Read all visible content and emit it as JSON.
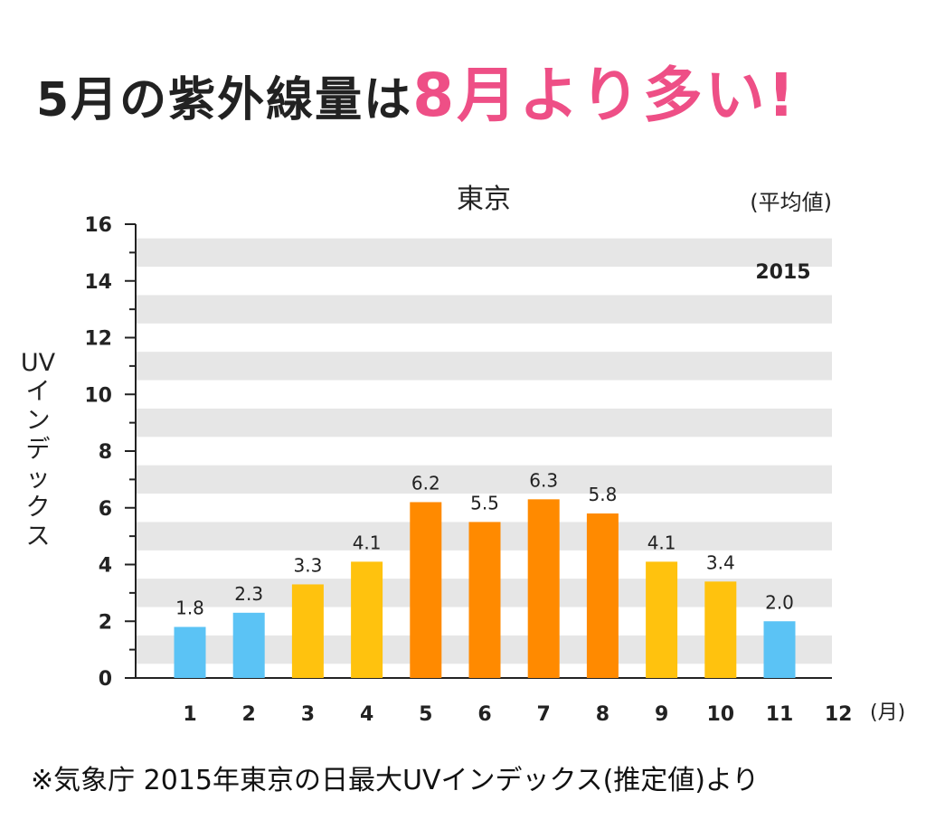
{
  "headline": {
    "part1": "5月の紫外線量は",
    "part2": "8月より多い!"
  },
  "chart_data": {
    "type": "bar",
    "title": "東京",
    "subtitle": "(平均値)",
    "legend_year": "2015",
    "ylabel_lines": [
      "UV",
      "イ",
      "ン",
      "デ",
      "ッ",
      "ク",
      "ス"
    ],
    "xunit": "(月)",
    "categories": [
      "1",
      "2",
      "3",
      "4",
      "5",
      "6",
      "7",
      "8",
      "9",
      "10",
      "11",
      "12"
    ],
    "values": [
      1.8,
      2.3,
      3.3,
      4.1,
      6.2,
      5.5,
      6.3,
      5.8,
      4.1,
      3.4,
      2.0,
      null
    ],
    "value_labels": [
      "1.8",
      "2.3",
      "3.3",
      "4.1",
      "6.2",
      "5.5",
      "6.3",
      "5.8",
      "4.1",
      "3.4",
      "2.0",
      ""
    ],
    "ylim": [
      0,
      16
    ],
    "yticks": [
      "0",
      "2",
      "4",
      "6",
      "8",
      "10",
      "12",
      "14",
      "16"
    ],
    "colors": {
      "low": "#5bc3f5",
      "mid": "#ffc20e",
      "high": "#ff8a00",
      "band": "#e6e6e6"
    },
    "bar_colors": [
      "low",
      "low",
      "mid",
      "mid",
      "high",
      "high",
      "high",
      "high",
      "mid",
      "mid",
      "low"
    ]
  },
  "footnote": "※気象庁 2015年東京の日最大UVインデックス(推定値)より"
}
